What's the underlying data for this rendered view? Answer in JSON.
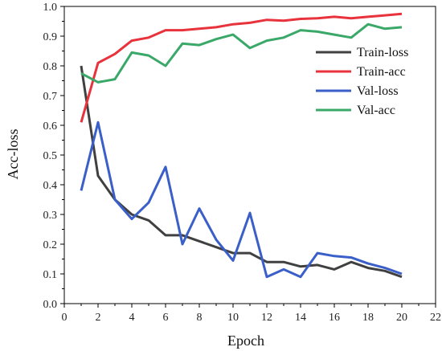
{
  "chart_data": {
    "type": "line",
    "title": "",
    "xlabel": "Epoch",
    "ylabel": "Acc-loss",
    "xlim": [
      0,
      22
    ],
    "ylim": [
      0.0,
      1.0
    ],
    "x_ticks": [
      "0",
      "2",
      "4",
      "6",
      "8",
      "10",
      "12",
      "14",
      "16",
      "18",
      "20",
      "22"
    ],
    "y_ticks": [
      "0.0",
      "0.1",
      "0.2",
      "0.3",
      "0.4",
      "0.5",
      "0.6",
      "0.7",
      "0.8",
      "0.9",
      "1.0"
    ],
    "grid": false,
    "legend_position": "top-right",
    "x": [
      1,
      2,
      3,
      4,
      5,
      6,
      7,
      8,
      9,
      10,
      11,
      12,
      13,
      14,
      15,
      16,
      17,
      18,
      19,
      20
    ],
    "series": [
      {
        "name": "Train-loss",
        "color": "#404040",
        "values": [
          0.8,
          0.43,
          0.35,
          0.3,
          0.28,
          0.23,
          0.23,
          0.21,
          0.19,
          0.17,
          0.17,
          0.14,
          0.14,
          0.125,
          0.13,
          0.115,
          0.14,
          0.12,
          0.11,
          0.09
        ]
      },
      {
        "name": "Train-acc",
        "color": "#e8323c",
        "values": [
          0.61,
          0.81,
          0.84,
          0.885,
          0.895,
          0.92,
          0.92,
          0.925,
          0.93,
          0.94,
          0.945,
          0.955,
          0.952,
          0.958,
          0.96,
          0.965,
          0.96,
          0.965,
          0.97,
          0.975
        ]
      },
      {
        "name": "Val-loss",
        "color": "#3a5fc8",
        "values": [
          0.38,
          0.61,
          0.35,
          0.285,
          0.34,
          0.46,
          0.2,
          0.32,
          0.215,
          0.145,
          0.305,
          0.09,
          0.115,
          0.09,
          0.17,
          0.16,
          0.155,
          0.135,
          0.12,
          0.1
        ]
      },
      {
        "name": "Val-acc",
        "color": "#3aa868",
        "values": [
          0.775,
          0.745,
          0.755,
          0.845,
          0.835,
          0.8,
          0.875,
          0.87,
          0.89,
          0.905,
          0.86,
          0.885,
          0.895,
          0.92,
          0.915,
          0.905,
          0.895,
          0.94,
          0.925,
          0.93
        ]
      }
    ]
  }
}
